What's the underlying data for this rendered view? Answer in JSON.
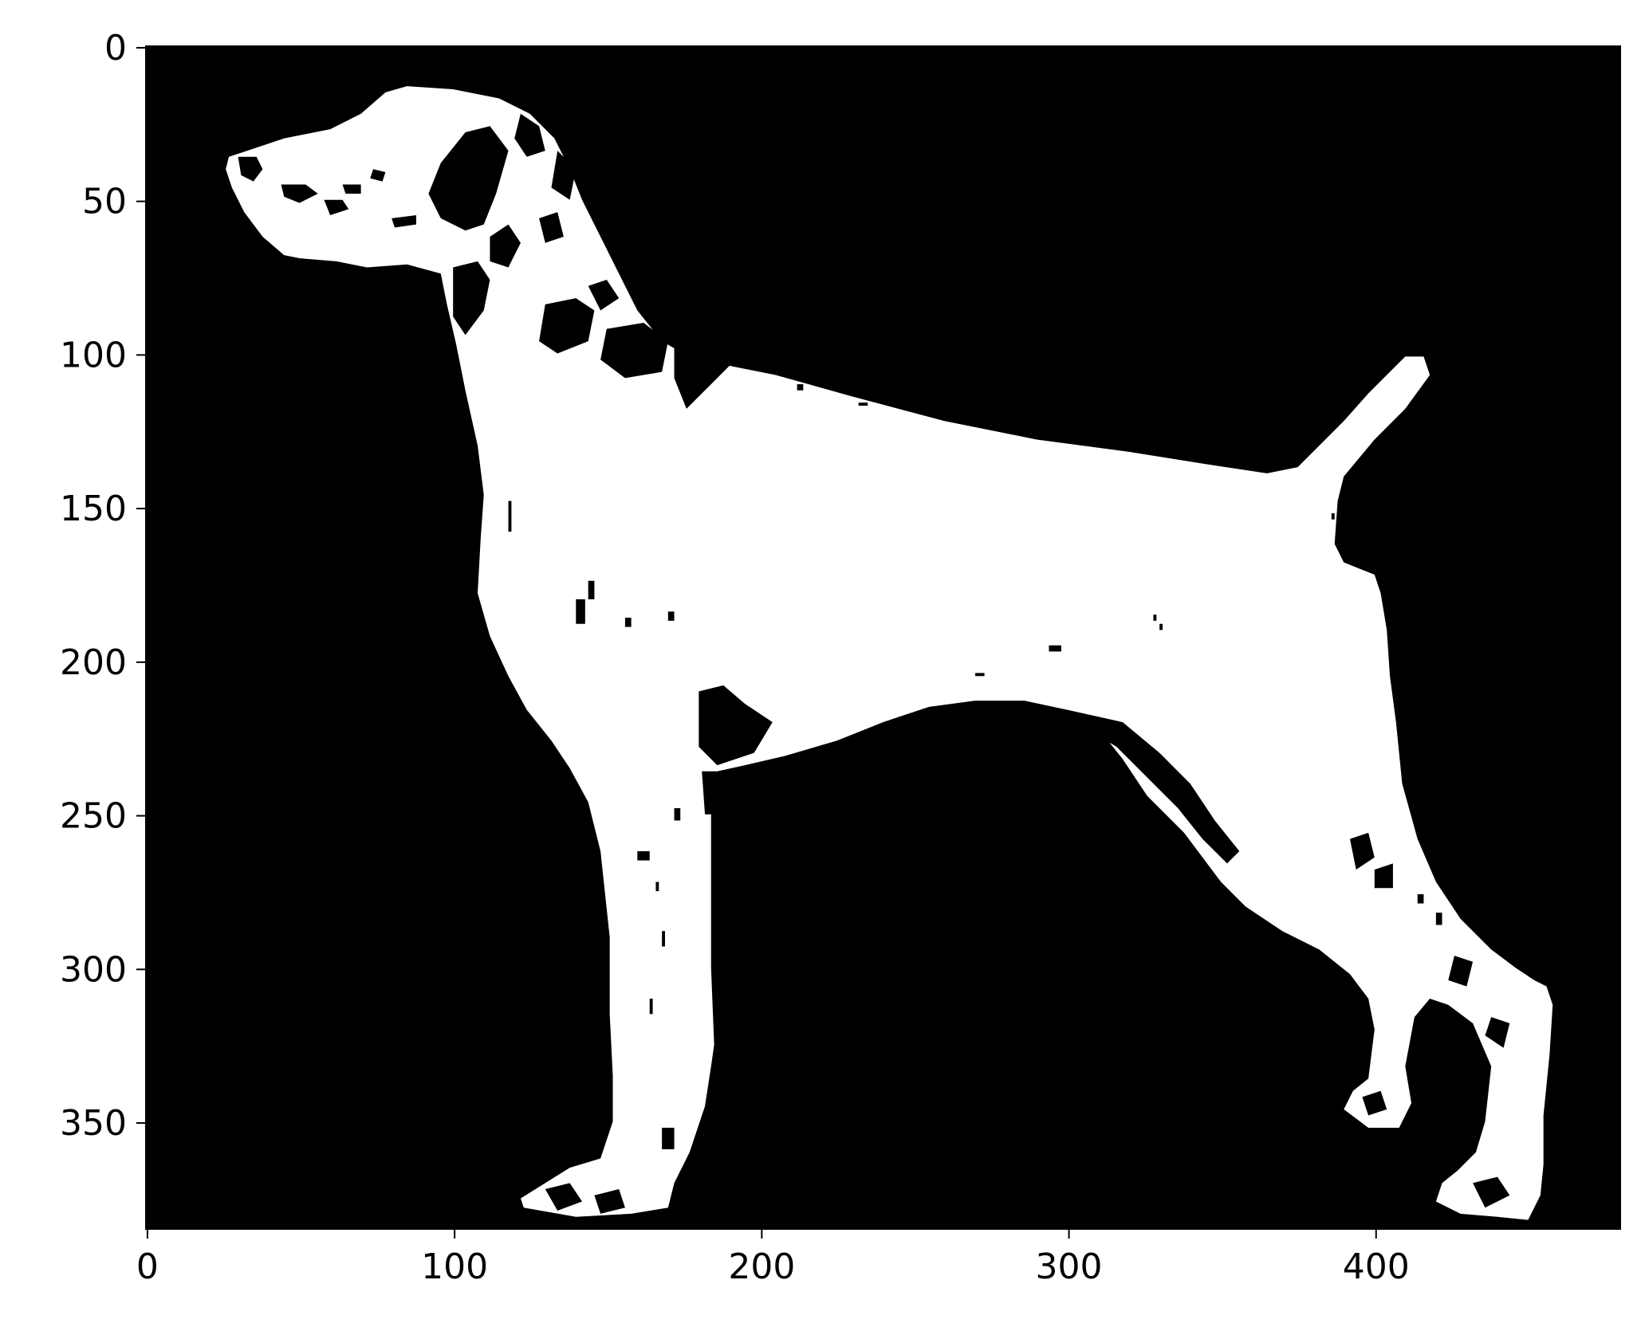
{
  "chart_data": {
    "type": "image",
    "title": "",
    "xlabel": "",
    "ylabel": "",
    "description_kind": "binary thresholded image shown with imshow (white foreground on black background)",
    "image_size": {
      "width": 480,
      "height": 385
    },
    "xlim": [
      -0.5,
      479.5
    ],
    "ylim": [
      384.5,
      -0.5
    ],
    "x_ticks": [
      0,
      100,
      200,
      300,
      400
    ],
    "y_ticks": [
      0,
      50,
      100,
      150,
      200,
      250,
      300,
      350
    ],
    "x_tick_labels": [
      "0",
      "100",
      "200",
      "300",
      "400"
    ],
    "y_tick_labels": [
      "0",
      "50",
      "100",
      "150",
      "200",
      "250",
      "300",
      "350"
    ],
    "colors": {
      "background": "#000000",
      "foreground": "#ffffff",
      "axis": "#000000",
      "page": "#ffffff"
    }
  }
}
